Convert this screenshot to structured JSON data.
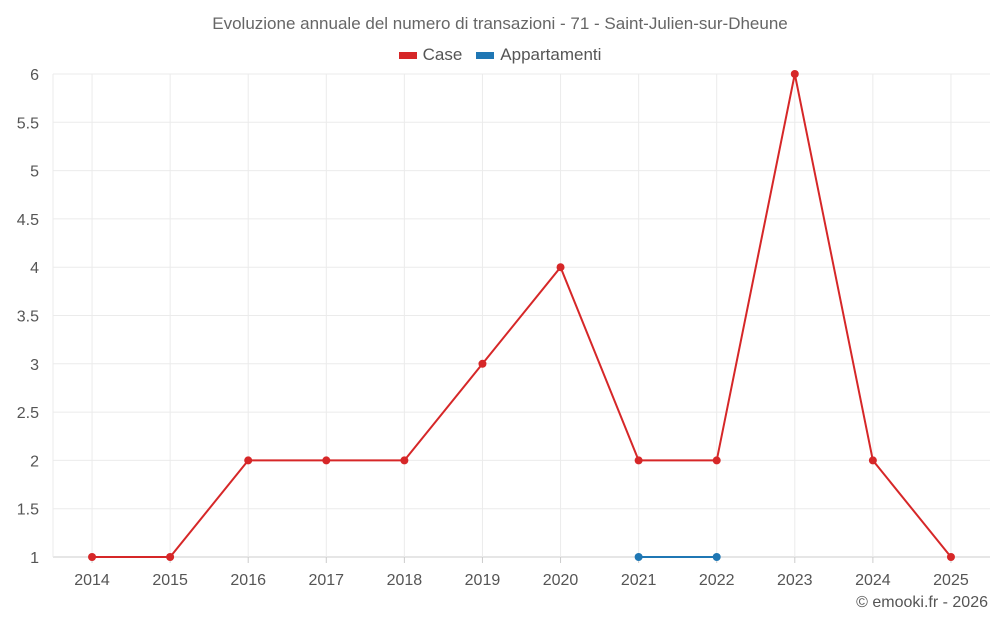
{
  "chart_data": {
    "type": "line",
    "title": "Evoluzione annuale del numero di transazioni - 71 - Saint-Julien-sur-Dheune",
    "categories": [
      "2014",
      "2015",
      "2016",
      "2017",
      "2018",
      "2019",
      "2020",
      "2021",
      "2022",
      "2023",
      "2024",
      "2025"
    ],
    "yticks": [
      "1",
      "1.5",
      "2",
      "2.5",
      "3",
      "3.5",
      "4",
      "4.5",
      "5",
      "5.5",
      "6"
    ],
    "ylim": [
      1,
      6
    ],
    "grid": true,
    "legend_position": "top-center",
    "series": [
      {
        "name": "Case",
        "color": "#d62728",
        "values": [
          1,
          1,
          2,
          2,
          2,
          3,
          4,
          2,
          2,
          6,
          2,
          1
        ]
      },
      {
        "name": "Appartamenti",
        "color": "#1f77b4",
        "values": [
          null,
          null,
          null,
          null,
          null,
          null,
          null,
          1,
          1,
          null,
          null,
          null
        ]
      }
    ]
  },
  "credit": "© emooki.fr - 2026"
}
